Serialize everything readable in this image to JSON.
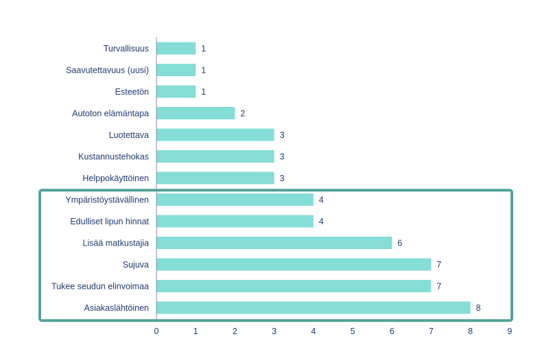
{
  "chart_data": {
    "type": "bar",
    "orientation": "horizontal",
    "title": "",
    "xlabel": "",
    "ylabel": "",
    "categories": [
      "Turvallisuus",
      "Saavutettavuus (uusi)",
      "Esteetön",
      "Autoton elämäntapa",
      "Luotettava",
      "Kustannustehokas",
      "Helppokäyttöinen",
      "Ympäristöystävällinen",
      "Edulliset lipun hinnat",
      "Lisää matkustajia",
      "Sujuva",
      "Tukee seudun elinvoimaa",
      "Asiakaslähtöinen"
    ],
    "values": [
      1,
      1,
      1,
      2,
      3,
      3,
      3,
      4,
      4,
      6,
      7,
      7,
      8
    ],
    "xlim": [
      0,
      9
    ],
    "x_ticks": [
      0,
      1,
      2,
      3,
      4,
      5,
      6,
      7,
      8,
      9
    ],
    "grid": false,
    "legend": "none",
    "bar_color": "#84ddd6",
    "text_color": "#1f3b6e",
    "highlight": {
      "categories": [
        "Ympäristöystävällinen",
        "Edulliset lipun hinnat",
        "Lisää matkustajia",
        "Sujuva",
        "Tukee seudun elinvoimaa",
        "Asiakaslähtöinen"
      ],
      "color": "#55a199"
    }
  }
}
